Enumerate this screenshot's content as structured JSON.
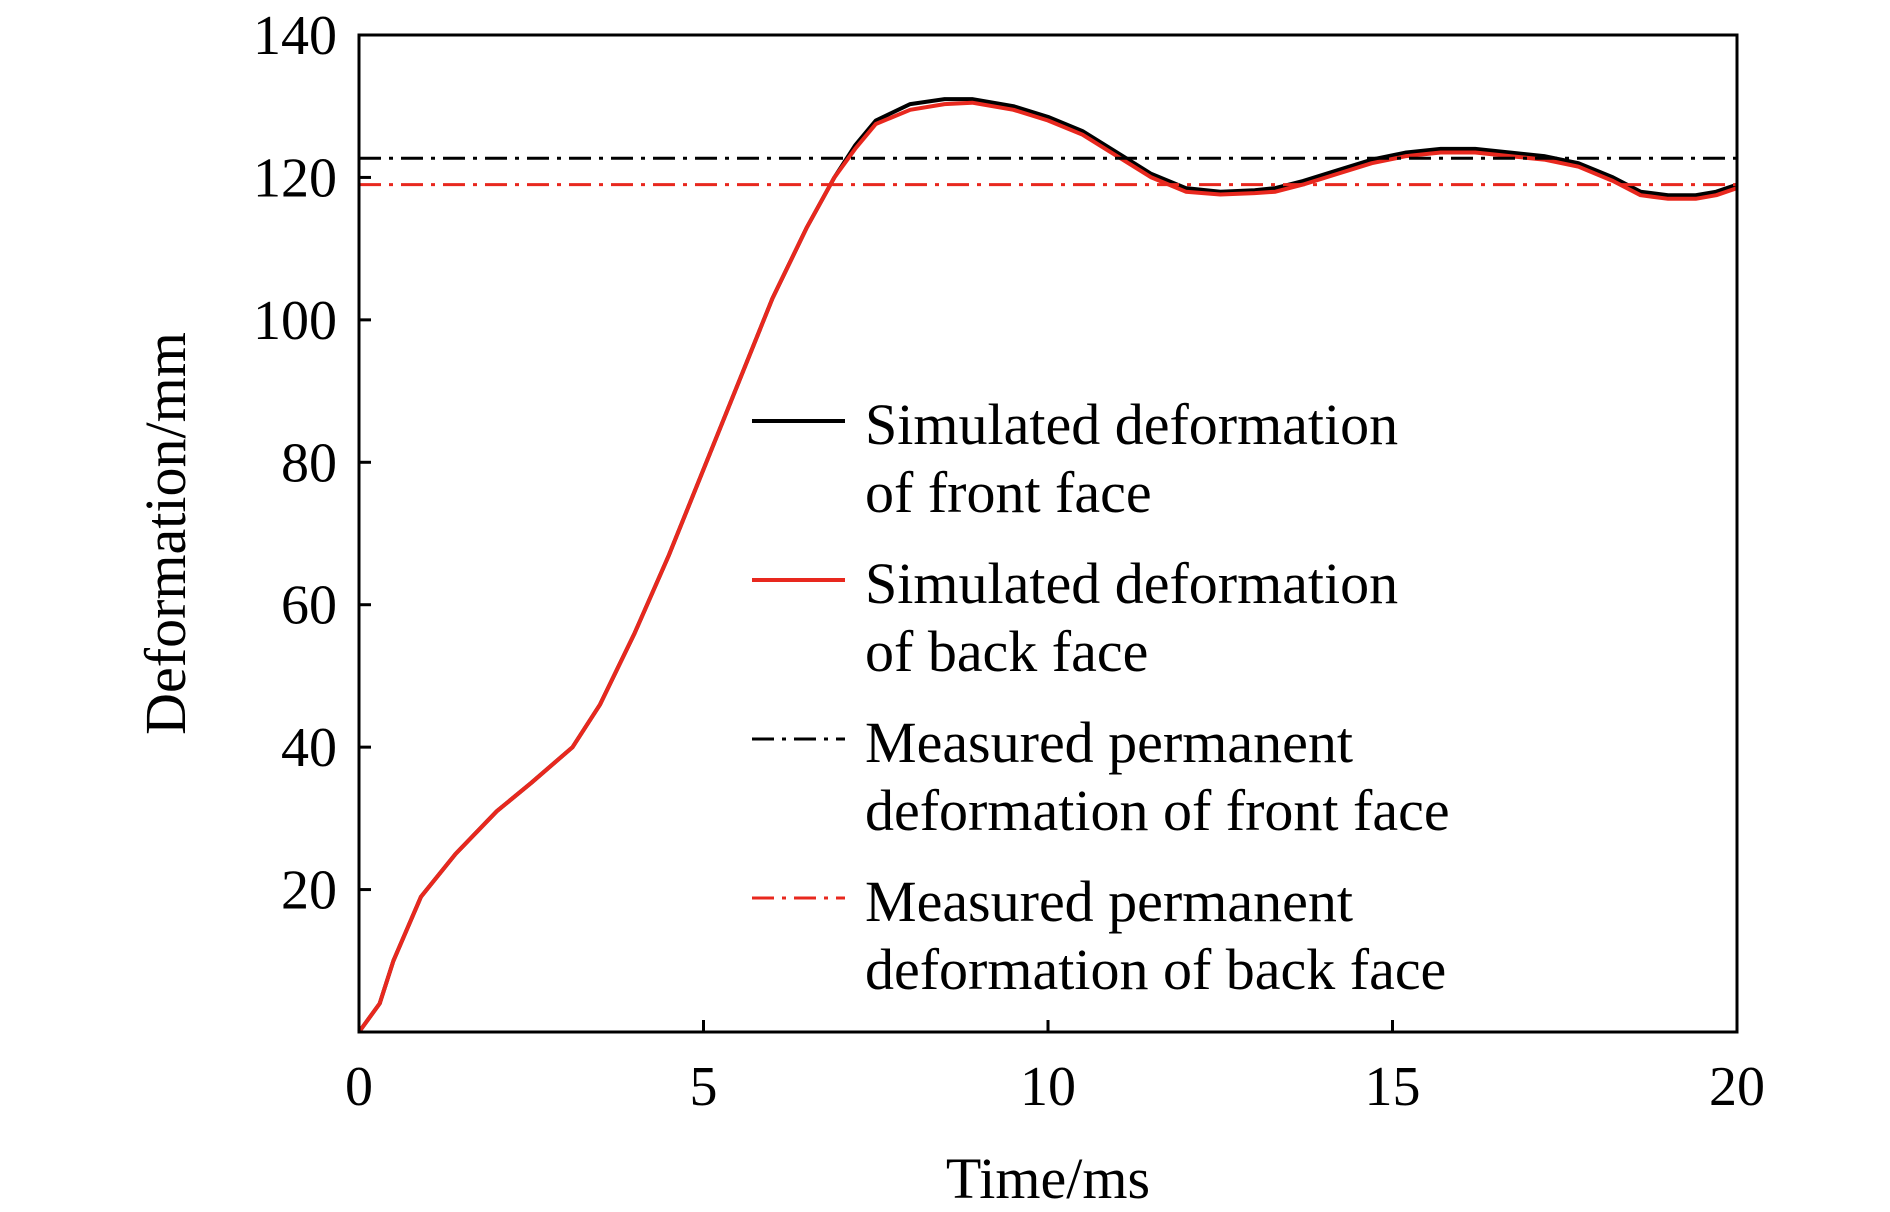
{
  "chart_data": {
    "type": "line",
    "xlabel": "Time/ms",
    "ylabel": "Deformation/mm",
    "xlim": [
      0,
      20
    ],
    "ylim": [
      0,
      140
    ],
    "xticks": [
      0,
      5,
      10,
      15,
      20
    ],
    "yticks": [
      20,
      40,
      60,
      80,
      100,
      120,
      140
    ],
    "grid": false,
    "legend_position": "center-right",
    "series": [
      {
        "name": "Simulated deformation of front face",
        "color": "#000000",
        "style": "solid",
        "x": [
          0,
          0.3,
          0.5,
          0.9,
          1.4,
          2,
          2.5,
          3.1,
          3.5,
          4,
          4.5,
          5,
          5.5,
          6,
          6.5,
          6.9,
          7.2,
          7.5,
          8,
          8.5,
          8.9,
          9.5,
          10,
          10.5,
          11,
          11.5,
          12,
          12.5,
          13,
          13.3,
          13.7,
          14.2,
          14.7,
          15.2,
          15.7,
          16.2,
          16.7,
          17.2,
          17.7,
          18.2,
          18.6,
          19,
          19.4,
          19.7,
          20
        ],
        "y": [
          0,
          4,
          10,
          19,
          25,
          31,
          35,
          40,
          46,
          56,
          67,
          79,
          91,
          103,
          113,
          120,
          124.5,
          128,
          130.3,
          131,
          131,
          130,
          128.5,
          126.5,
          123.5,
          120.5,
          118.5,
          118,
          118.2,
          118.5,
          119.5,
          121,
          122.5,
          123.5,
          124,
          124,
          123.5,
          123,
          122,
          120,
          118,
          117.5,
          117.5,
          118,
          119
        ]
      },
      {
        "name": "Simulated deformation of back face",
        "color": "#e8281e",
        "style": "solid",
        "x": [
          0,
          0.3,
          0.5,
          0.9,
          1.4,
          2,
          2.5,
          3.1,
          3.5,
          4,
          4.5,
          5,
          5.5,
          6,
          6.5,
          6.9,
          7.2,
          7.5,
          8,
          8.5,
          8.9,
          9.5,
          10,
          10.5,
          11,
          11.5,
          12,
          12.5,
          13,
          13.3,
          13.7,
          14.2,
          14.7,
          15.2,
          15.7,
          16.2,
          16.7,
          17.2,
          17.7,
          18.2,
          18.6,
          19,
          19.4,
          19.7,
          20
        ],
        "y": [
          0,
          4,
          10,
          19,
          25,
          31,
          35,
          40,
          46,
          56,
          67,
          79,
          91,
          103,
          113,
          120,
          124,
          127.5,
          129.5,
          130.3,
          130.5,
          129.5,
          128,
          126,
          123,
          120,
          118,
          117.6,
          117.8,
          118,
          119,
          120.5,
          122,
          123,
          123.5,
          123.5,
          123,
          122.5,
          121.5,
          119.5,
          117.5,
          117,
          117,
          117.5,
          118.5
        ]
      },
      {
        "name": "Measured permanent deformation of front face",
        "color": "#000000",
        "style": "dashdot",
        "x": [
          0,
          20
        ],
        "y": [
          122.7,
          122.7
        ]
      },
      {
        "name": "Measured permanent deformation of back face",
        "color": "#e8281e",
        "style": "dashdot",
        "x": [
          0,
          20
        ],
        "y": [
          119,
          119
        ]
      }
    ],
    "legend": [
      {
        "line1": "Simulated deformation",
        "line2": "of front face"
      },
      {
        "line1": "Simulated deformation",
        "line2": "of back face"
      },
      {
        "line1": "Measured permanent",
        "line2": "deformation of front face"
      },
      {
        "line1": "Measured permanent",
        "line2": "deformation of back face"
      }
    ]
  }
}
